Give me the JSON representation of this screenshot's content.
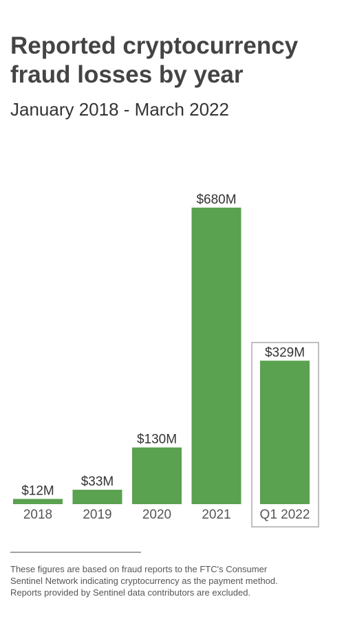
{
  "chart_data": {
    "type": "bar",
    "title": [
      "Reported cryptocurrency",
      "fraud losses by year"
    ],
    "subtitle": "January 2018 - March 2022",
    "categories": [
      "2018",
      "2019",
      "2020",
      "2021",
      "Q1 2022"
    ],
    "values": [
      12,
      33,
      130,
      680,
      329
    ],
    "value_labels": [
      "$12M",
      "$33M",
      "$130M",
      "$680M",
      "$329M"
    ],
    "color": "#5aa150",
    "footnote": [
      "These figures are based on fraud reports to the FTC's Consumer",
      "Sentinel Network indicating cryptocurrency as the payment method.",
      "Reports provided by Sentinel data contributors are excluded."
    ]
  }
}
